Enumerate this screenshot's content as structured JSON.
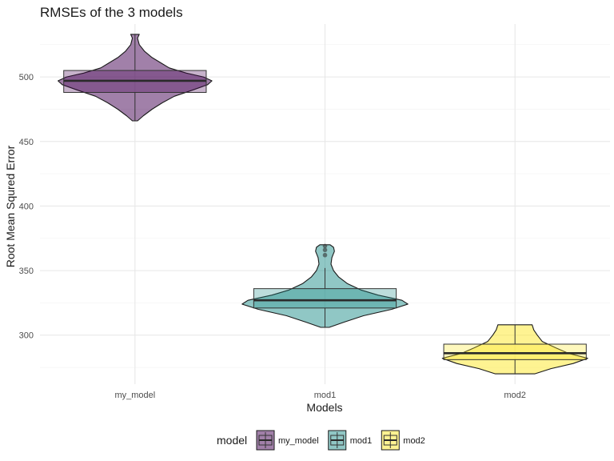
{
  "chart_data": {
    "type": "violin",
    "title": "RMSEs of the 3 models",
    "xlabel": "Models",
    "ylabel": "Root Mean Squred Error",
    "categories": [
      "my_model",
      "mod1",
      "mod2"
    ],
    "ylim": [
      262,
      541
    ],
    "yticks": [
      300,
      350,
      400,
      450,
      500
    ],
    "grid": true,
    "legend": {
      "title": "model",
      "position": "bottom",
      "entries": [
        "my_model",
        "mod1",
        "mod2"
      ]
    },
    "colors": {
      "my_model": "#440154",
      "mod1": "#21908C",
      "mod2": "#FDE725"
    },
    "series": [
      {
        "name": "my_model",
        "box": {
          "min": 466,
          "q1": 488,
          "median": 497,
          "q3": 505,
          "max": 533
        },
        "outliers": [],
        "density": [
          [
            466,
            0.03
          ],
          [
            470,
            0.1
          ],
          [
            475,
            0.2
          ],
          [
            480,
            0.32
          ],
          [
            485,
            0.46
          ],
          [
            490,
            0.68
          ],
          [
            494,
            0.85
          ],
          [
            497,
            0.9
          ],
          [
            500,
            0.8
          ],
          [
            503,
            0.6
          ],
          [
            507,
            0.4
          ],
          [
            511,
            0.3
          ],
          [
            515,
            0.2
          ],
          [
            520,
            0.11
          ],
          [
            525,
            0.05
          ],
          [
            530,
            0.03
          ],
          [
            533,
            0.05
          ]
        ]
      },
      {
        "name": "mod1",
        "box": {
          "min": 306,
          "q1": 321,
          "median": 327,
          "q3": 336,
          "max": 352
        },
        "outliers": [
          362,
          366,
          369
        ],
        "density": [
          [
            306,
            0.05
          ],
          [
            310,
            0.22
          ],
          [
            315,
            0.45
          ],
          [
            320,
            0.78
          ],
          [
            324,
            0.97
          ],
          [
            327,
            0.9
          ],
          [
            331,
            0.62
          ],
          [
            335,
            0.42
          ],
          [
            340,
            0.26
          ],
          [
            345,
            0.16
          ],
          [
            350,
            0.1
          ],
          [
            355,
            0.07
          ],
          [
            360,
            0.08
          ],
          [
            365,
            0.11
          ],
          [
            368,
            0.1
          ],
          [
            370,
            0.06
          ]
        ]
      },
      {
        "name": "mod2",
        "box": {
          "min": 270,
          "q1": 281,
          "median": 286,
          "q3": 293,
          "max": 308
        },
        "outliers": [],
        "density": [
          [
            270,
            0.23
          ],
          [
            274,
            0.42
          ],
          [
            278,
            0.68
          ],
          [
            282,
            0.85
          ],
          [
            286,
            0.62
          ],
          [
            290,
            0.48
          ],
          [
            295,
            0.32
          ],
          [
            300,
            0.26
          ],
          [
            304,
            0.22
          ],
          [
            308,
            0.2
          ]
        ]
      }
    ]
  }
}
